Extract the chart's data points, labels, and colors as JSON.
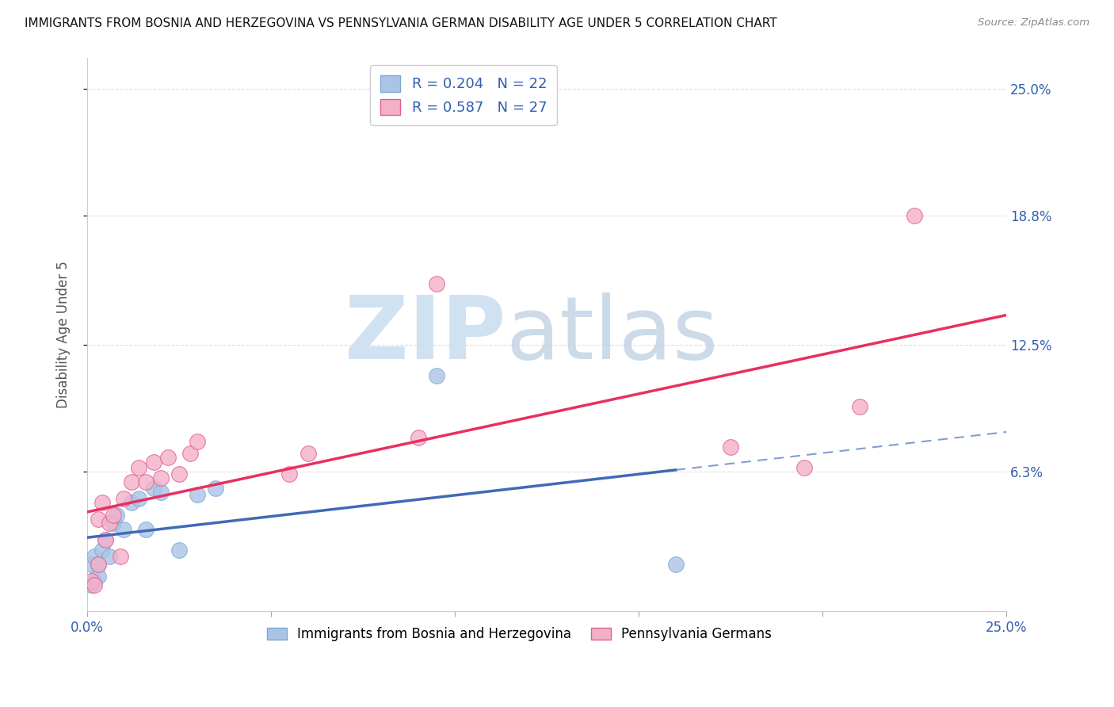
{
  "title": "IMMIGRANTS FROM BOSNIA AND HERZEGOVINA VS PENNSYLVANIA GERMAN DISABILITY AGE UNDER 5 CORRELATION CHART",
  "source": "Source: ZipAtlas.com",
  "ylabel": "Disability Age Under 5",
  "xlim": [
    0.0,
    0.25
  ],
  "ylim": [
    -0.005,
    0.265
  ],
  "ytick_values": [
    0.063,
    0.125,
    0.188,
    0.25
  ],
  "ytick_labels": [
    "6.3%",
    "12.5%",
    "18.8%",
    "25.0%"
  ],
  "blue_series": {
    "label": "Immigrants from Bosnia and Herzegovina",
    "R": 0.204,
    "N": 22,
    "line_color": "#4169b8",
    "fill_color": "#aac4e8",
    "edge_color": "#7aaad0",
    "x": [
      0.001,
      0.001,
      0.002,
      0.002,
      0.003,
      0.003,
      0.004,
      0.005,
      0.006,
      0.007,
      0.008,
      0.01,
      0.012,
      0.014,
      0.016,
      0.018,
      0.02,
      0.025,
      0.03,
      0.035,
      0.095,
      0.16
    ],
    "y": [
      0.008,
      0.018,
      0.01,
      0.022,
      0.012,
      0.018,
      0.025,
      0.03,
      0.022,
      0.038,
      0.042,
      0.035,
      0.048,
      0.05,
      0.035,
      0.055,
      0.053,
      0.025,
      0.052,
      0.055,
      0.11,
      0.018
    ]
  },
  "pink_series": {
    "label": "Pennsylvania Germans",
    "R": 0.587,
    "N": 27,
    "line_color": "#e83060",
    "fill_color": "#f4b0c8",
    "edge_color": "#e06090",
    "x": [
      0.001,
      0.002,
      0.003,
      0.003,
      0.004,
      0.005,
      0.006,
      0.007,
      0.009,
      0.01,
      0.012,
      0.014,
      0.016,
      0.018,
      0.02,
      0.022,
      0.025,
      0.028,
      0.03,
      0.055,
      0.06,
      0.09,
      0.095,
      0.175,
      0.195,
      0.21,
      0.225
    ],
    "y": [
      0.01,
      0.008,
      0.04,
      0.018,
      0.048,
      0.03,
      0.038,
      0.042,
      0.022,
      0.05,
      0.058,
      0.065,
      0.058,
      0.068,
      0.06,
      0.07,
      0.062,
      0.072,
      0.078,
      0.062,
      0.072,
      0.08,
      0.155,
      0.075,
      0.065,
      0.095,
      0.188
    ]
  },
  "background_color": "#ffffff",
  "grid_color": "#d8d8d8"
}
